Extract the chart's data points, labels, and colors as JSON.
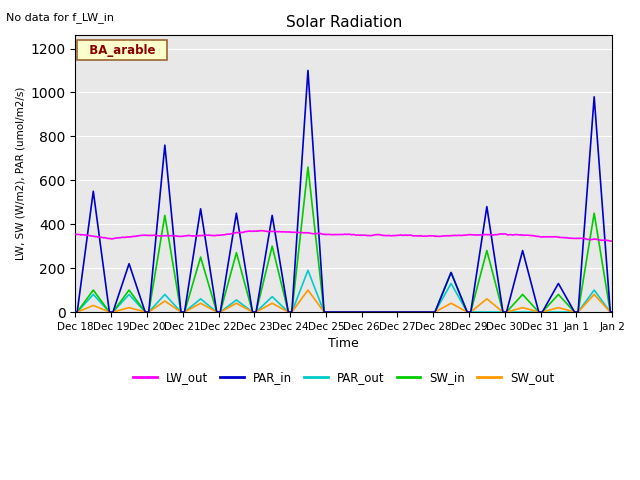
{
  "title": "Solar Radiation",
  "ylabel": "LW, SW (W/m2), PAR (umol/m2/s)",
  "xlabel": "Time",
  "note": "No data for f_LW_in",
  "legend_label": "BA_arable",
  "ylim": [
    0,
    1260
  ],
  "yticks": [
    0,
    200,
    400,
    600,
    800,
    1000,
    1200
  ],
  "bg_color": "#e8e8e8",
  "colors": {
    "LW_out": "#ff00ff",
    "PAR_in": "#0000cc",
    "PAR_out": "#00cccc",
    "SW_in": "#00cc00",
    "SW_out": "#ff9900"
  },
  "xtick_labels": [
    "Dec 18",
    "Dec 19",
    "Dec 20",
    "Dec 21",
    "Dec 22",
    "Dec 23",
    "Dec 24",
    "Dec 25",
    "Dec 26",
    "Dec 27",
    "Dec 28",
    "Dec 29",
    "Dec 30",
    "Dec 31",
    "Jan 1",
    "Jan 2"
  ],
  "PAR_in_peaks": [
    550,
    220,
    760,
    470,
    450,
    440,
    1100,
    0,
    0,
    0,
    180,
    480,
    280,
    130,
    980,
    0
  ],
  "PAR_out_peaks": [
    80,
    80,
    80,
    60,
    55,
    70,
    190,
    0,
    0,
    0,
    130,
    0,
    0,
    0,
    100,
    0
  ],
  "SW_in_peaks": [
    100,
    100,
    440,
    250,
    270,
    300,
    660,
    0,
    0,
    0,
    180,
    280,
    80,
    80,
    450,
    0
  ],
  "SW_out_peaks": [
    30,
    20,
    50,
    40,
    40,
    40,
    100,
    0,
    0,
    0,
    40,
    60,
    20,
    20,
    80,
    0
  ],
  "LW_out_base": 345,
  "LW_out_values": [
    355,
    335,
    350,
    345,
    350,
    370,
    365,
    355,
    350,
    350,
    345,
    350,
    355,
    345,
    335,
    325
  ]
}
